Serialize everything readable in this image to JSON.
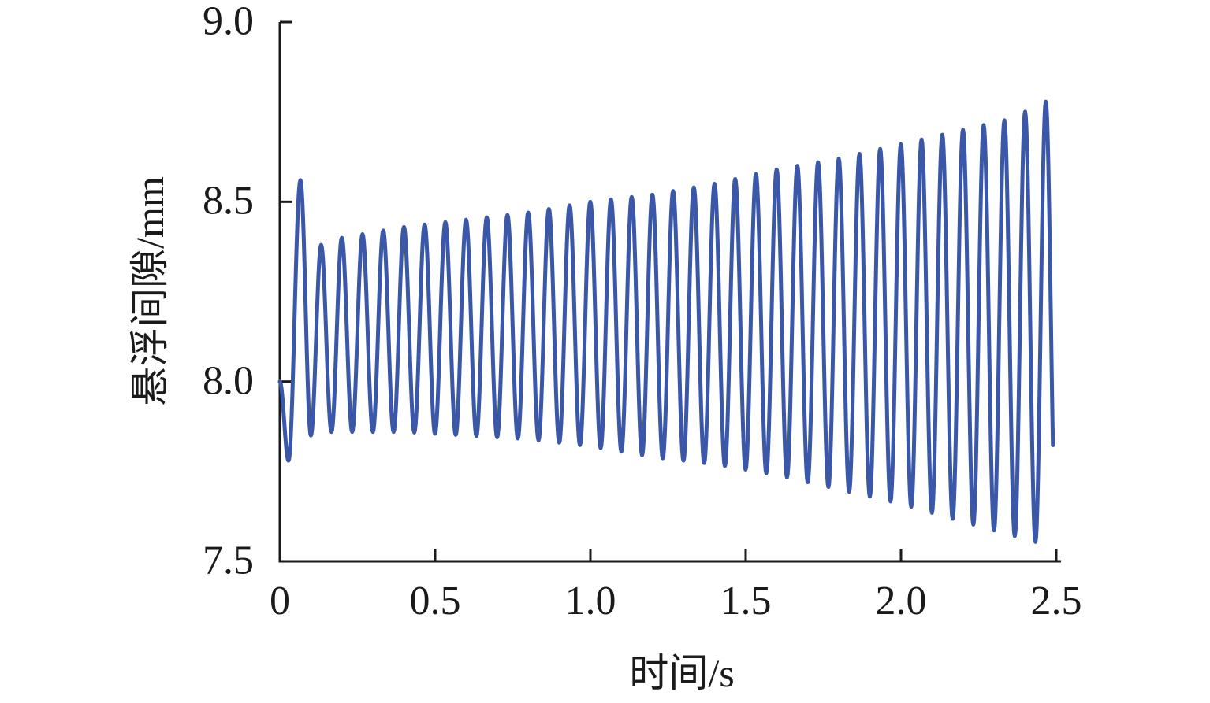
{
  "figure": {
    "background_color": "#ffffff",
    "axis_color": "#1a1a1a",
    "line_color": "#3a57a8"
  },
  "chart_data": {
    "type": "line",
    "title": "",
    "xlabel": "时间/s",
    "ylabel": "悬浮间隙/mm",
    "xlim": [
      0,
      2.5
    ],
    "ylim": [
      7.5,
      9.0
    ],
    "grid": false,
    "legend": null,
    "x_ticks": [
      0,
      0.5,
      1.0,
      1.5,
      2.0,
      2.5
    ],
    "x_tick_labels": [
      "0",
      "0.5",
      "1.0",
      "1.5",
      "2.0",
      "2.5"
    ],
    "y_ticks": [
      9.0,
      8.5,
      8.0,
      7.5
    ],
    "y_tick_labels": [
      "9.0",
      "8.5",
      "8.0",
      "7.5"
    ],
    "series": [
      {
        "name": "悬浮间隙",
        "color": "#3a57a8",
        "line_width": 5,
        "oscillation_frequency_hz": 15,
        "initial_value": 8.0,
        "first_steady_peak_time": 0.0663,
        "end_time": 2.49,
        "transient_anchors": [
          [
            0.0,
            8.0
          ],
          [
            0.028,
            7.78
          ],
          [
            0.0663,
            8.56
          ],
          [
            0.1,
            7.85
          ],
          [
            0.133,
            8.38
          ],
          [
            0.1663,
            7.86
          ]
        ],
        "peak_envelope": [
          [
            0.133,
            8.38
          ],
          [
            0.2,
            8.4
          ],
          [
            0.4,
            8.43
          ],
          [
            0.6,
            8.45
          ],
          [
            0.8,
            8.47
          ],
          [
            1.0,
            8.5
          ],
          [
            1.2,
            8.52
          ],
          [
            1.4,
            8.55
          ],
          [
            1.6,
            8.59
          ],
          [
            1.8,
            8.62
          ],
          [
            2.0,
            8.66
          ],
          [
            2.2,
            8.7
          ],
          [
            2.35,
            8.73
          ],
          [
            2.47,
            8.78
          ]
        ],
        "trough_envelope": [
          [
            0.166,
            7.86
          ],
          [
            0.4,
            7.86
          ],
          [
            0.6,
            7.85
          ],
          [
            0.8,
            7.84
          ],
          [
            1.0,
            7.82
          ],
          [
            1.2,
            7.79
          ],
          [
            1.4,
            7.77
          ],
          [
            1.6,
            7.74
          ],
          [
            1.8,
            7.7
          ],
          [
            2.0,
            7.66
          ],
          [
            2.2,
            7.61
          ],
          [
            2.45,
            7.55
          ]
        ]
      }
    ]
  }
}
